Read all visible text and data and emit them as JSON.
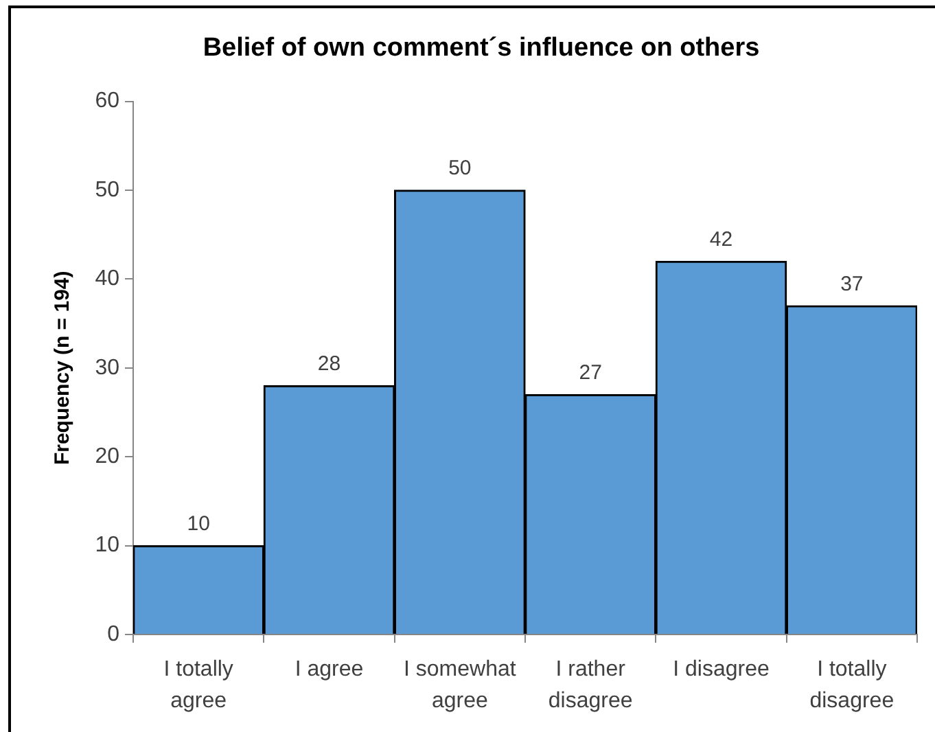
{
  "chart_data": {
    "type": "bar",
    "title": "Belief of own comment´s influence on others",
    "ylabel": "Frequency (n = 194)",
    "categories": [
      "I totally agree",
      "I agree",
      "I somewhat agree",
      "I rather disagree",
      "I disagree",
      "I totally disagree"
    ],
    "values": [
      10,
      28,
      50,
      27,
      42,
      37
    ],
    "color": "#5b9bd5",
    "ylim": [
      0,
      60
    ],
    "yticks": [
      0,
      10,
      20,
      30,
      40,
      50,
      60
    ],
    "data_labels": true
  }
}
